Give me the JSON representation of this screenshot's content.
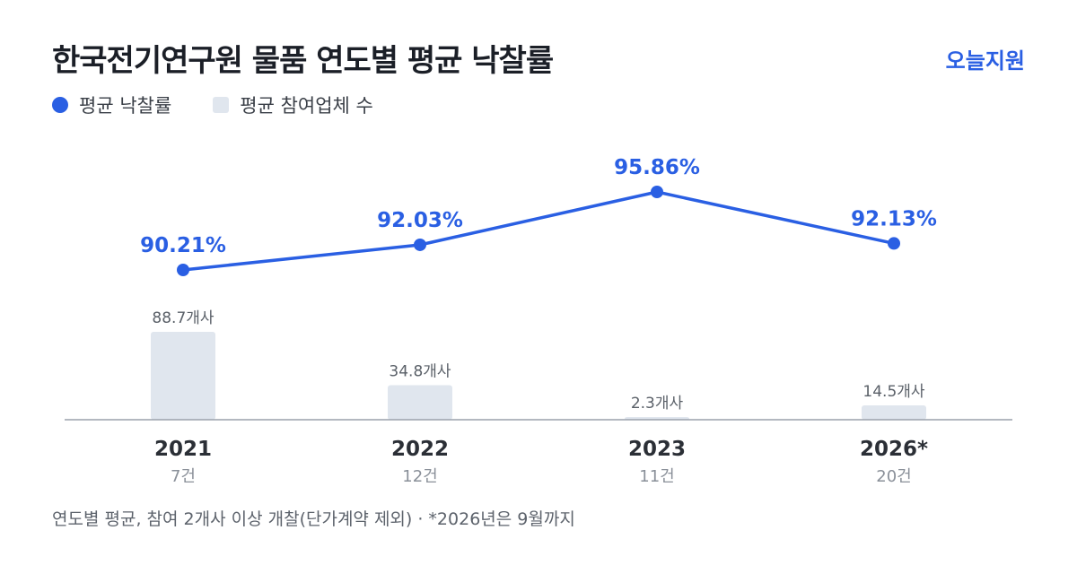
{
  "title": "한국전기연구원 물품 연도별 평균 낙찰률",
  "brand": "오늘지원",
  "legend": {
    "rate_label": "평균 낙찰률",
    "bidders_label": "평균 참여업체 수"
  },
  "colors": {
    "line": "#2a5fe3",
    "bar": "#e0e6ee",
    "axis": "#9aa1ac",
    "year_text": "#2b2f36",
    "count_text": "#8a9099",
    "bar_label_text": "#5a6068"
  },
  "chart_data": {
    "type": "bar+line",
    "categories": [
      "2021",
      "2022",
      "2023",
      "2026*"
    ],
    "sub_labels": [
      "7건",
      "12건",
      "11건",
      "20건"
    ],
    "series": [
      {
        "name": "평균 낙찰률",
        "kind": "line",
        "values": [
          90.21,
          92.03,
          95.86,
          92.13
        ],
        "labels": [
          "90.21%",
          "92.03%",
          "95.86%",
          "92.13%"
        ]
      },
      {
        "name": "평균 참여업체 수",
        "kind": "bar",
        "values": [
          88.7,
          34.8,
          2.3,
          14.5
        ],
        "labels": [
          "88.7개사",
          "34.8개사",
          "2.3개사",
          "14.5개사"
        ]
      }
    ],
    "grid": false,
    "legend_position": "top-left"
  },
  "footnote": "연도별 평균, 참여 2개사 이상 개찰(단가계약 제외) · *2026년은 9월까지"
}
